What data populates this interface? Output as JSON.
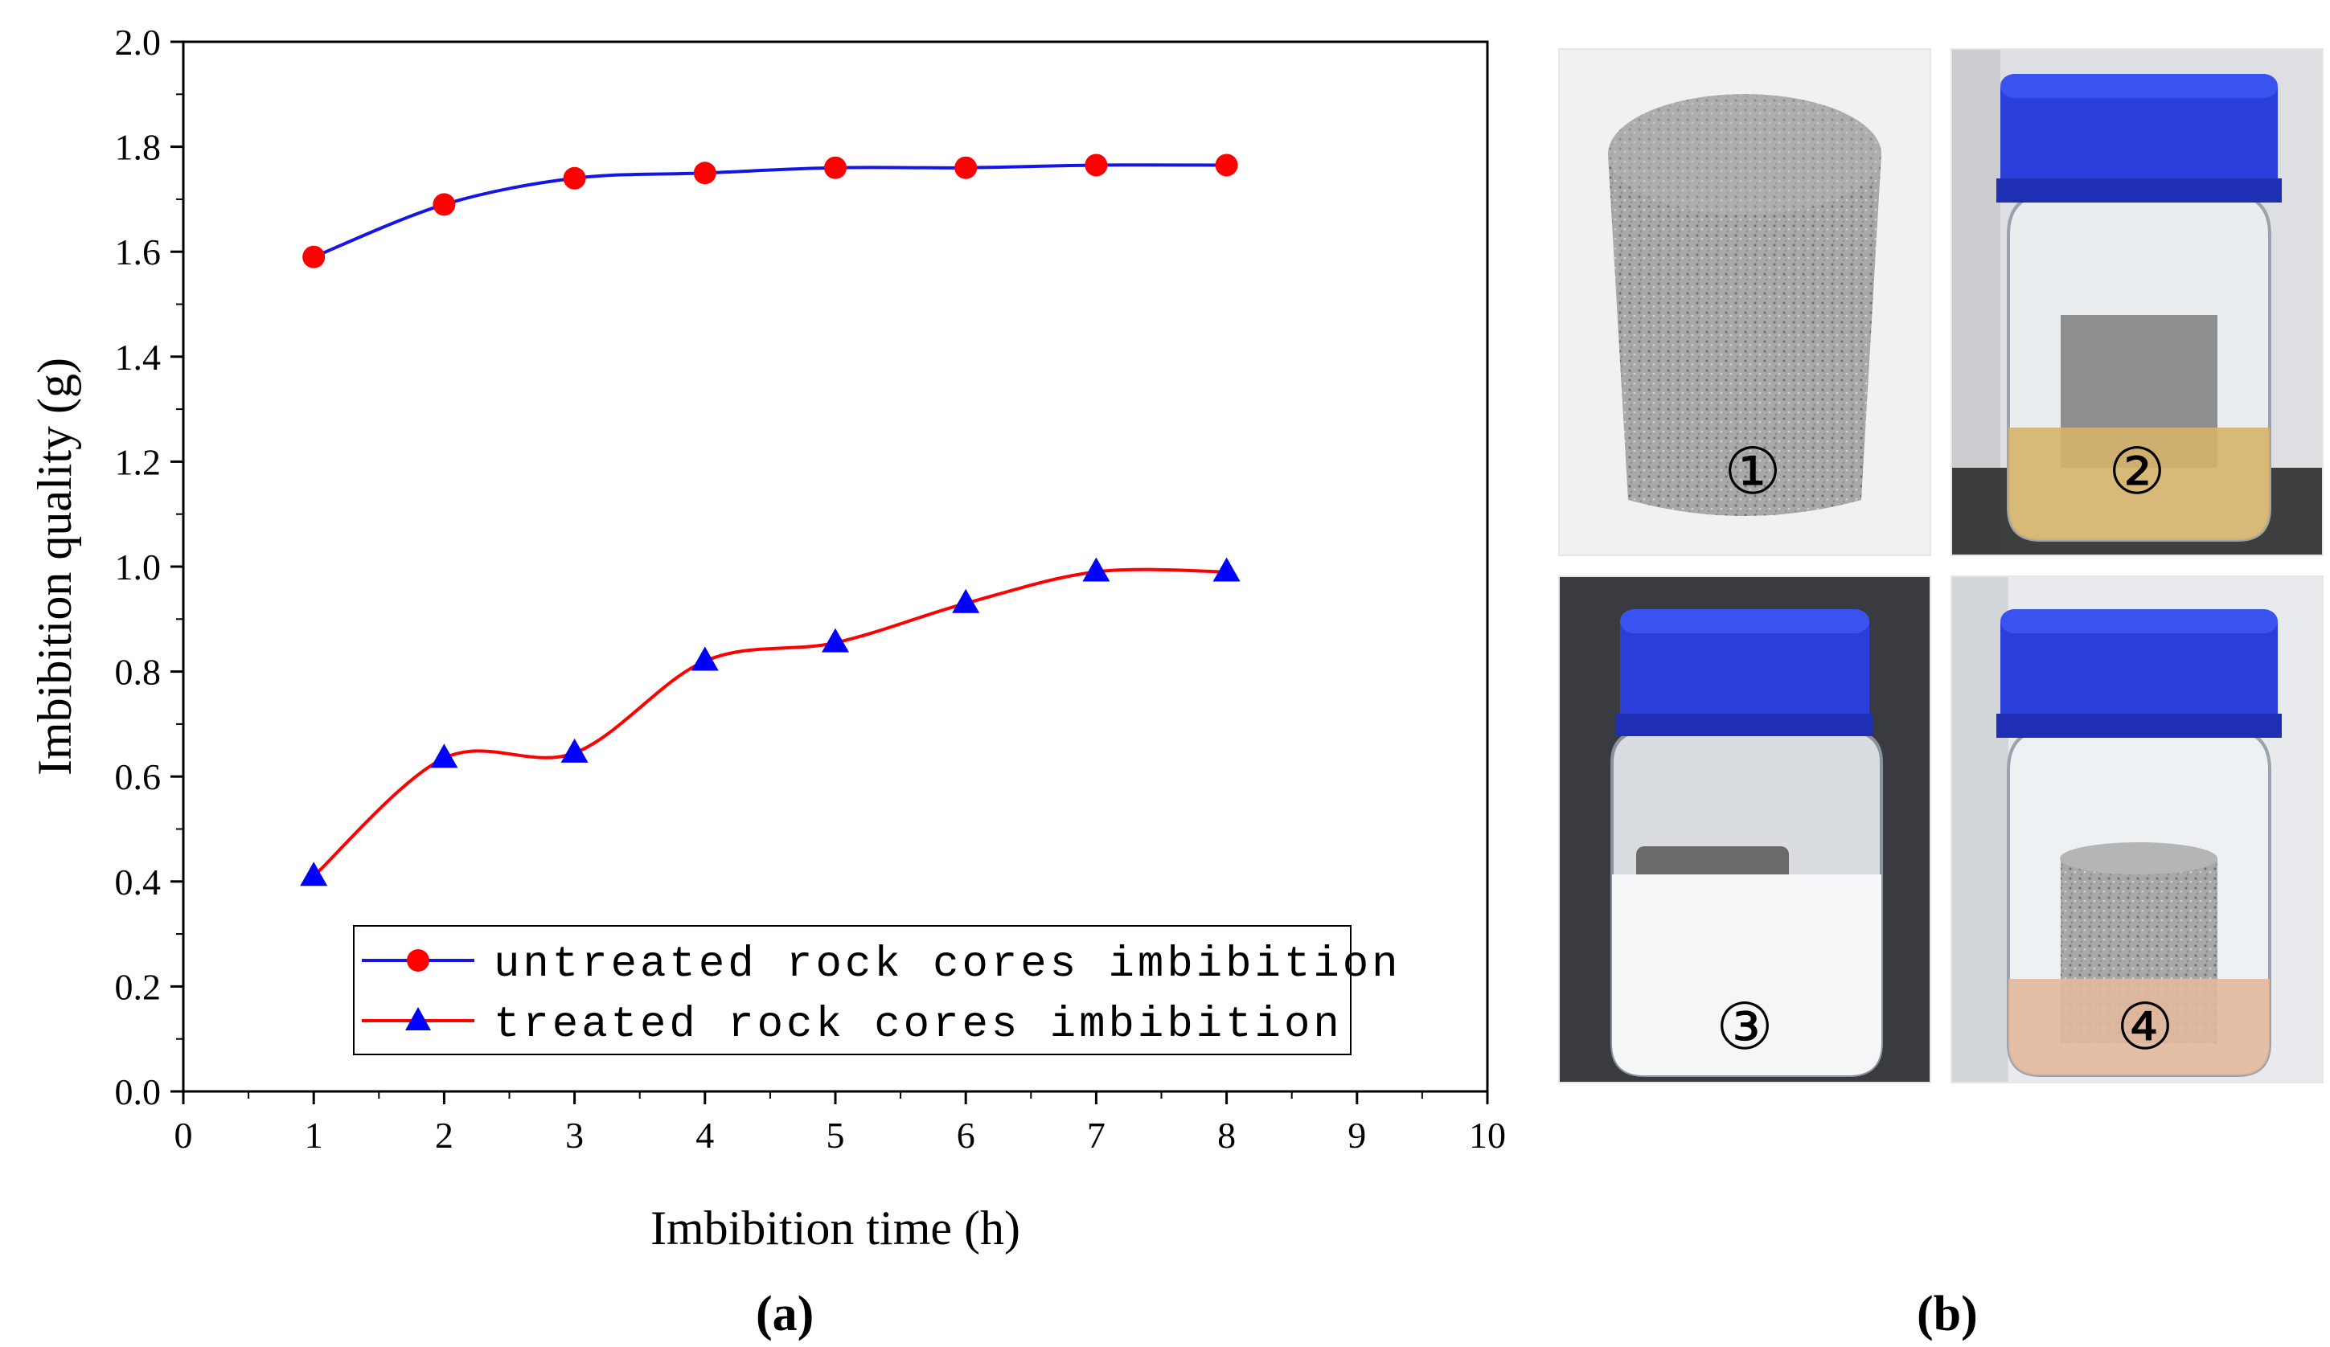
{
  "chart_data": {
    "type": "line",
    "panel_label": "(a)",
    "xlabel": "Imbibition time (h)",
    "ylabel": "Imbibition quality (g)",
    "xlim": [
      0,
      10
    ],
    "ylim": [
      0.0,
      2.0
    ],
    "x_ticks": [
      "0",
      "1",
      "2",
      "3",
      "4",
      "5",
      "6",
      "7",
      "8",
      "9",
      "10"
    ],
    "y_ticks": [
      "0.0",
      "0.2",
      "0.4",
      "0.6",
      "0.8",
      "1.0",
      "1.2",
      "1.4",
      "1.6",
      "1.8",
      "2.0"
    ],
    "legend_position": "bottom-center",
    "series": [
      {
        "name": "untreated rock cores imbibition",
        "marker": "circle",
        "line_color": "#1515e6",
        "marker_color": "#ff0000",
        "x": [
          1,
          2,
          3,
          4,
          5,
          6,
          7,
          8
        ],
        "y": [
          1.59,
          1.69,
          1.74,
          1.75,
          1.76,
          1.76,
          1.765,
          1.765
        ]
      },
      {
        "name": "treated rock cores imbibition",
        "marker": "triangle",
        "line_color": "#ff0000",
        "marker_color": "#0000ff",
        "x": [
          1,
          2,
          3,
          4,
          5,
          6,
          7,
          8
        ],
        "y": [
          0.41,
          0.635,
          0.645,
          0.82,
          0.855,
          0.93,
          0.99,
          0.99
        ]
      }
    ]
  },
  "photos_panel": {
    "panel_label": "(b)",
    "photos": [
      {
        "label": "①",
        "subject": "rock-core"
      },
      {
        "label": "②",
        "subject": "jar-amber-liquid"
      },
      {
        "label": "③",
        "subject": "jar-white-liquid"
      },
      {
        "label": "④",
        "subject": "jar-pink-liquid"
      }
    ],
    "colors": {
      "cap": "#2a3fd9",
      "rock": "#a6a6a6",
      "amber_liquid": "#d6b36a",
      "white_liquid": "#f4f6f8",
      "pink_liquid": "#e2b89c"
    }
  }
}
